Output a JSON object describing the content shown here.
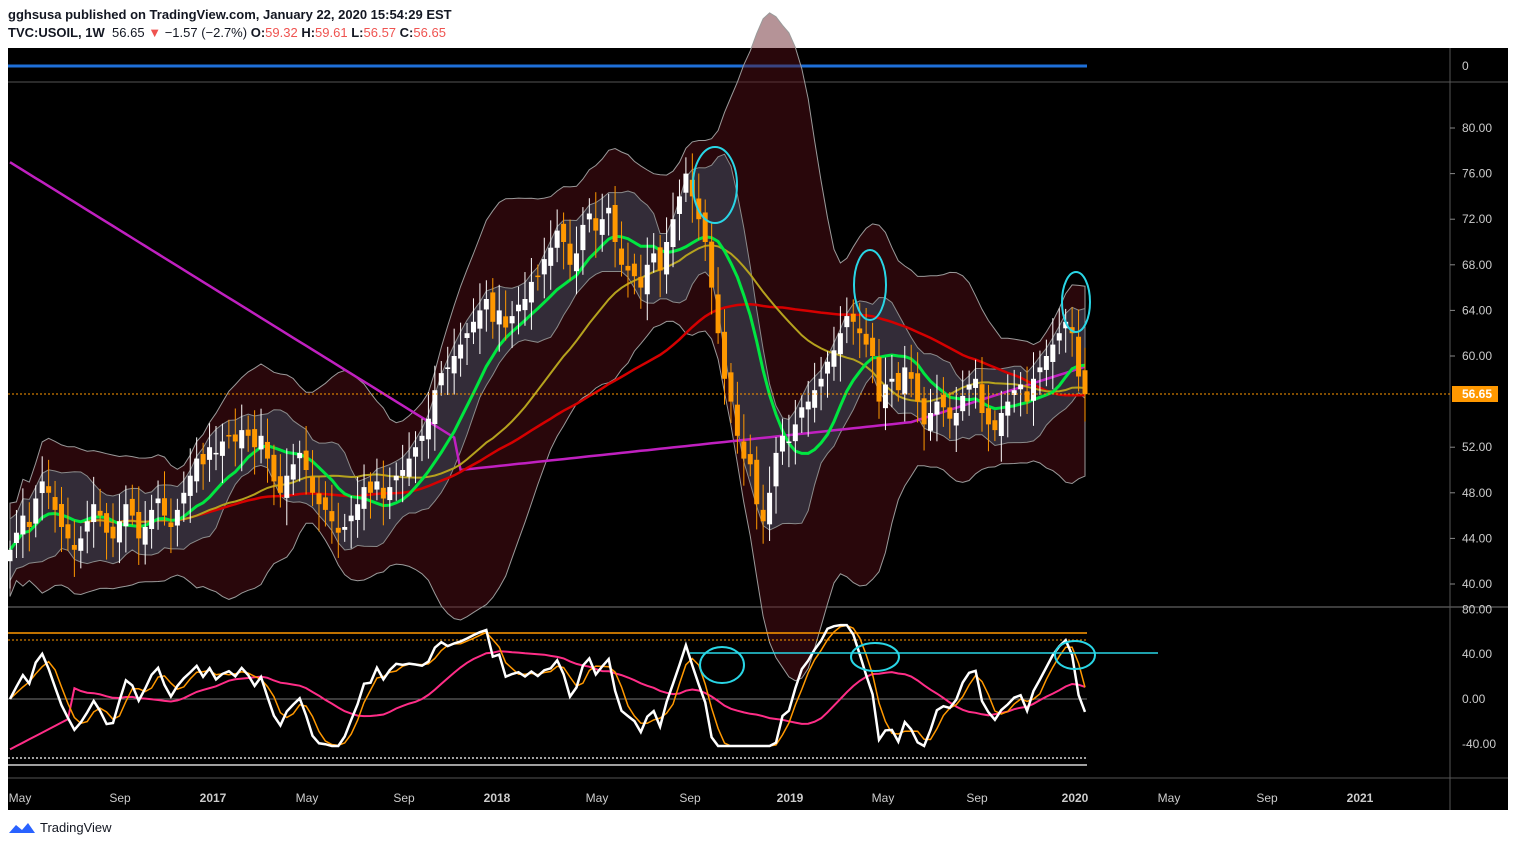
{
  "header": {
    "publisher_line": "gghsusa published on TradingView.com, January 22, 2020 15:54:29 EST",
    "symbol": "TVC:USOIL, 1W",
    "last": "56.65",
    "change": "−1.57 (−2.7%)",
    "o_label": "O:",
    "o_val": "59.32",
    "h_label": "H:",
    "h_val": "59.61",
    "l_label": "L:",
    "l_val": "56.57",
    "c_label": "C:",
    "c_val": "56.65"
  },
  "footer": {
    "brand": "TradingView"
  },
  "colors": {
    "bg": "#000000",
    "up": "#ffffff",
    "down": "#ff9800",
    "green_ma": "#00e640",
    "red_ma": "#d50000",
    "yellow_ma": "#b5a21e",
    "magenta_ma": "#c020c0",
    "band": "#3a3a3a",
    "circle": "#29d6e6",
    "price_line": "#ff9800"
  },
  "top_pane": {
    "tick": "0"
  },
  "chart_data": [
    {
      "type": "candlestick",
      "title": "TVC:USOIL, 1W",
      "ylim": [
        38,
        87
      ],
      "price_ticks": [
        "80.00",
        "76.00",
        "72.00",
        "68.00",
        "64.00",
        "60.00",
        "52.00",
        "48.00",
        "44.00",
        "40.00"
      ],
      "current_price": "56.65",
      "x_ticks": [
        "May",
        "Sep",
        "2017",
        "May",
        "Sep",
        "2018",
        "May",
        "Sep",
        "2019",
        "May",
        "Sep",
        "2020",
        "May",
        "Sep",
        "2021"
      ],
      "series": {
        "close": [
          43,
          44.5,
          46,
          45,
          47.5,
          49,
          48,
          46.5,
          45,
          44,
          43,
          44,
          45.5,
          47,
          46,
          44.5,
          44,
          45.5,
          47,
          46,
          44,
          45,
          46.5,
          47.5,
          46,
          45,
          46.5,
          48,
          49.5,
          51,
          50.5,
          52,
          51.5,
          52.5,
          53,
          52.5,
          53.5,
          53,
          52,
          53,
          51,
          49,
          48,
          49.5,
          50.5,
          51.5,
          50,
          48,
          47,
          46.5,
          45.5,
          44.5,
          45,
          46,
          47,
          48.5,
          48,
          49,
          47.5,
          48.5,
          49.5,
          50,
          51,
          52,
          53,
          54.5,
          57,
          58.5,
          59,
          60,
          61,
          62,
          63,
          64,
          65,
          63,
          64,
          62.5,
          63.5,
          64.5,
          65,
          66.5,
          67,
          68.5,
          69.5,
          71,
          70,
          68,
          69,
          71.5,
          72.5,
          71,
          72,
          73,
          70,
          68,
          67.5,
          67,
          66,
          68,
          69,
          67.5,
          70,
          72,
          74,
          76,
          74,
          72,
          70,
          66,
          62,
          58,
          56,
          53,
          51,
          50.5,
          47,
          45.5,
          48,
          51.5,
          53,
          52.5,
          54,
          55.5,
          56,
          57,
          58,
          59.5,
          60.5,
          62,
          63.5,
          63,
          62,
          61,
          60,
          56,
          57.5,
          58,
          57,
          59,
          58,
          56,
          54,
          55,
          56,
          55.5,
          54.5,
          55,
          56.5,
          57.5,
          58,
          55,
          54,
          53.5,
          55,
          56,
          57,
          57.5,
          56,
          58,
          59,
          60,
          61,
          62,
          63,
          62,
          58.2,
          56.65
        ],
        "ma_green": "20-period",
        "ma_yellow": "50-period",
        "ma_red": "100-period",
        "ma_magenta": "200-period"
      }
    },
    {
      "type": "line",
      "title": "",
      "ylim": [
        -48,
        83
      ],
      "y_ticks": [
        "80.00",
        "40.00",
        "0.00",
        "-40.00"
      ],
      "series": [
        {
          "name": "",
          "color": "#ffffff"
        },
        {
          "name": "",
          "color": "#ff9800"
        },
        {
          "name": "",
          "color": "#ff2d87"
        }
      ]
    }
  ]
}
